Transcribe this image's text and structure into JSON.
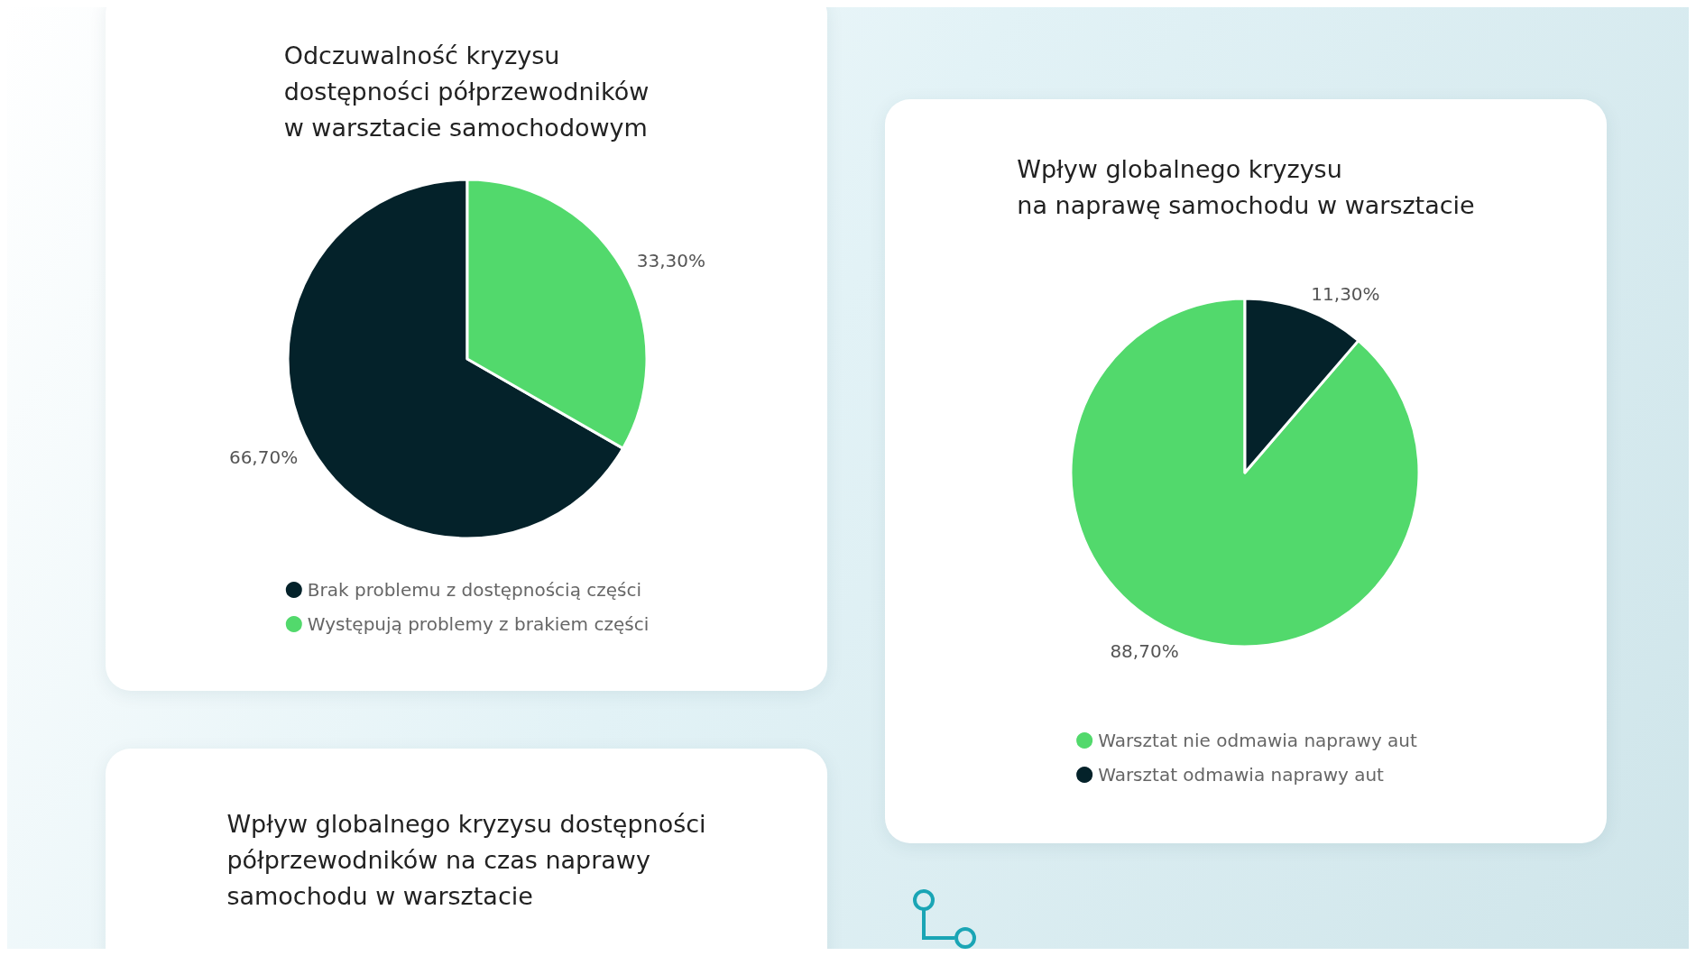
{
  "chart_data": [
    {
      "type": "pie",
      "title": "Odczuwalność kryzysu\ndostępności półprzewodników\nw warsztacie samochodowym",
      "categories": [
        "Brak problemu z dostępnością części",
        "Występują problemy z brakiem części"
      ],
      "values": [
        66.7,
        33.3
      ],
      "colors": [
        "#04222a",
        "#52d96c"
      ],
      "value_labels": [
        "66,70%",
        "33,30%"
      ],
      "legend": "bottom"
    },
    {
      "type": "pie",
      "title": "Wpływ globalnego kryzysu\nna naprawę samochodu w warsztacie",
      "categories": [
        "Warsztat nie odmawia naprawy aut",
        "Warsztat odmawia naprawy aut"
      ],
      "values": [
        88.7,
        11.3
      ],
      "colors": [
        "#52d96c",
        "#04222a"
      ],
      "value_labels": [
        "88,70%",
        "11,30%"
      ],
      "legend": "bottom"
    },
    {
      "type": "other",
      "title": "Wpływ globalnego kryzysu dostępności\npółprzewodników na czas naprawy\nsamochodu w warsztacie"
    }
  ]
}
